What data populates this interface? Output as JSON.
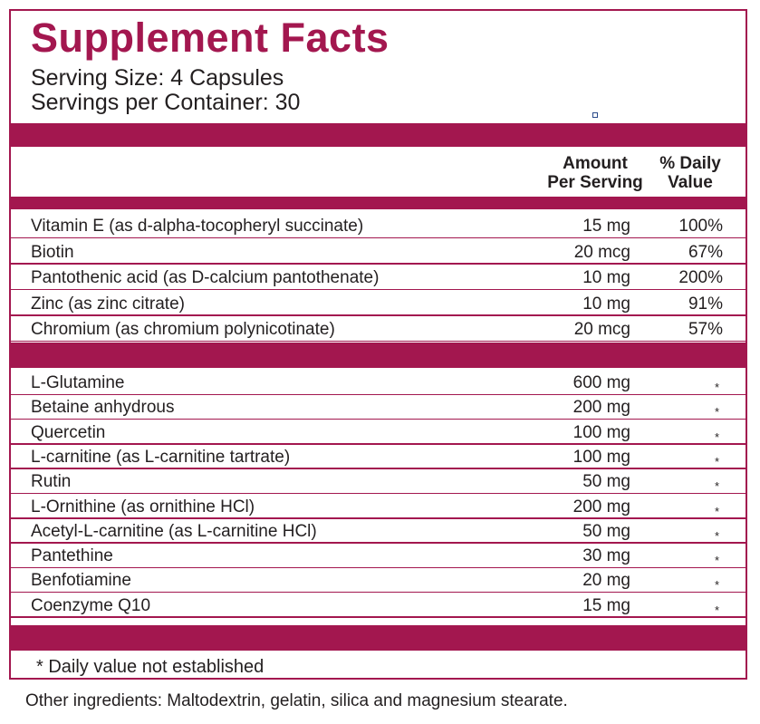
{
  "title": "Supplement Facts",
  "serving_size": "Serving Size: 4 Capsules",
  "servings_per_container": "Servings per Container: 30",
  "header": {
    "amount_line1": "Amount",
    "amount_line2": "Per Serving",
    "dv_line1": "% Daily",
    "dv_line2": "Value"
  },
  "vitamins": [
    {
      "name": "Vitamin E (as d-alpha-tocopheryl succinate)",
      "amount": "15 mg",
      "dv": "100%"
    },
    {
      "name": "Biotin",
      "amount": "20 mcg",
      "dv": "67%"
    },
    {
      "name": "Pantothenic acid (as D-calcium pantothenate)",
      "amount": "10 mg",
      "dv": "200%"
    },
    {
      "name": "Zinc (as zinc citrate)",
      "amount": "10 mg",
      "dv": "91%"
    },
    {
      "name": "Chromium (as chromium polynicotinate)",
      "amount": "20 mcg",
      "dv": "57%"
    }
  ],
  "other_nutrients": [
    {
      "name": "L-Glutamine",
      "amount": "600 mg",
      "dv": "*"
    },
    {
      "name": "Betaine anhydrous",
      "amount": "200 mg",
      "dv": "*"
    },
    {
      "name": "Quercetin",
      "amount": "100 mg",
      "dv": "*"
    },
    {
      "name": "L-carnitine (as L-carnitine tartrate)",
      "amount": "100 mg",
      "dv": "*"
    },
    {
      "name": "Rutin",
      "amount": "50 mg",
      "dv": "*"
    },
    {
      "name": "L-Ornithine (as ornithine HCl)",
      "amount": "200 mg",
      "dv": "*"
    },
    {
      "name": "Acetyl-L-carnitine (as L-carnitine HCl)",
      "amount": "50 mg",
      "dv": "*"
    },
    {
      "name": "Pantethine",
      "amount": "30 mg",
      "dv": "*"
    },
    {
      "name": "Benfotiamine",
      "amount": "20 mg",
      "dv": "*"
    },
    {
      "name": "Coenzyme Q10",
      "amount": "15 mg",
      "dv": "*"
    }
  ],
  "footnote": "* Daily value not established",
  "other_ingredients": "Other ingredients:  Maltodextrin, gelatin, silica and magnesium stearate.",
  "colors": {
    "accent": "#a3174f",
    "text": "#231f20"
  }
}
